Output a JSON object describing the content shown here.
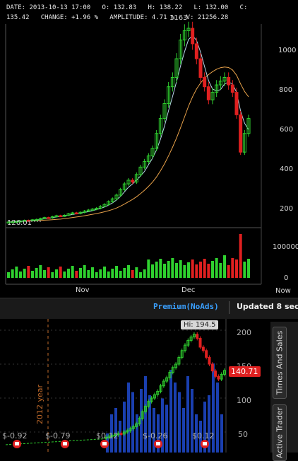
{
  "top_chart": {
    "info_line1": "DATE: 2013-10-13 17:00   O: 132.83   H: 138.22   L: 132.00   C:",
    "info_line2": "135.42   CHANGE: +1.96 %   AMPLITUDE: 4.71 %   V: 21256.28",
    "high_marker": "1163",
    "low_marker": "126.01",
    "y_ticks": [
      "1000",
      "800",
      "600",
      "400",
      "200"
    ],
    "volume_ticks": [
      "100000",
      "0"
    ],
    "x_ticks": [
      "Nov",
      "Dec",
      "Now"
    ]
  },
  "status_bar": {
    "premium_label": "Premium(NoAds)",
    "updated_text": "Updated 8 sec"
  },
  "bottom_chart": {
    "hi_label": "Hi: 194.5",
    "price_tag": "140.71",
    "year_label": "2012 year",
    "y_ticks": [
      "200",
      "150",
      "100",
      "50"
    ],
    "dividends": [
      "$-0.92",
      "$-0.79",
      "$0.12",
      "$-0.26",
      "$0.12"
    ]
  },
  "sidebar_tabs": [
    "Times And Sales",
    "Active Trader"
  ],
  "chart_data": [
    {
      "type": "candlestick",
      "title": "",
      "x_ticks": [
        "Nov",
        "Dec",
        "Now"
      ],
      "ylim": [
        0,
        1200
      ],
      "y_ticks": [
        200,
        400,
        600,
        800,
        1000
      ],
      "close": [
        126,
        128,
        130,
        132,
        135,
        134,
        138,
        140,
        145,
        150,
        148,
        155,
        160,
        158,
        162,
        170,
        175,
        172,
        178,
        185,
        190,
        195,
        200,
        210,
        220,
        235,
        250,
        270,
        300,
        330,
        350,
        340,
        380,
        420,
        450,
        480,
        520,
        600,
        680,
        760,
        850,
        900,
        1000,
        1100,
        1150,
        1163,
        1080,
        1000,
        900,
        850,
        780,
        820,
        860,
        880,
        900,
        860,
        820,
        700,
        500,
        600,
        680
      ],
      "annotations": [
        "1163",
        "126.01"
      ],
      "volume_ylim": [
        0,
        140000
      ],
      "volume_ticks": [
        0,
        100000
      ]
    },
    {
      "type": "candlestick",
      "title": "",
      "ylim": [
        40,
        210
      ],
      "y_ticks": [
        50,
        100,
        150,
        200
      ],
      "close": [
        42,
        44,
        45,
        46,
        48,
        47,
        50,
        52,
        55,
        58,
        62,
        70,
        80,
        88,
        95,
        100,
        105,
        110,
        118,
        125,
        130,
        138,
        145,
        150,
        160,
        170,
        178,
        185,
        190,
        194,
        188,
        175,
        170,
        160,
        150,
        140,
        132,
        128,
        135,
        140.71
      ],
      "annotations": [
        "Hi: 194.5",
        "140.71",
        "2012 year"
      ]
    }
  ]
}
